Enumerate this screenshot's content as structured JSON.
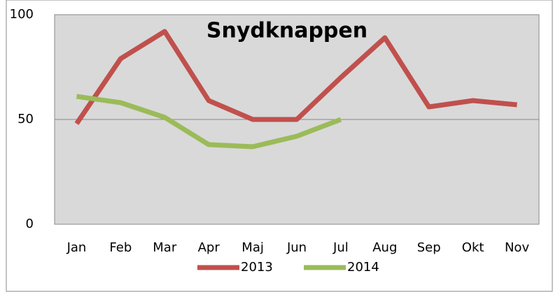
{
  "chart_data": {
    "type": "line",
    "title": "Snydknappen",
    "categories": [
      "Jan",
      "Feb",
      "Mar",
      "Apr",
      "Maj",
      "Jun",
      "Jul",
      "Aug",
      "Sep",
      "Okt",
      "Nov"
    ],
    "series": [
      {
        "name": "2013",
        "color": "#c0504d",
        "values": [
          48,
          79,
          92,
          59,
          50,
          50,
          70,
          89,
          56,
          59,
          57
        ]
      },
      {
        "name": "2014",
        "color": "#9bbb59",
        "values": [
          61,
          58,
          51,
          38,
          37,
          42,
          50,
          null,
          null,
          null,
          null
        ]
      }
    ],
    "ylim": [
      0,
      100
    ],
    "yticks": [
      0,
      50,
      100
    ],
    "grid": true,
    "legend": "bottom"
  }
}
